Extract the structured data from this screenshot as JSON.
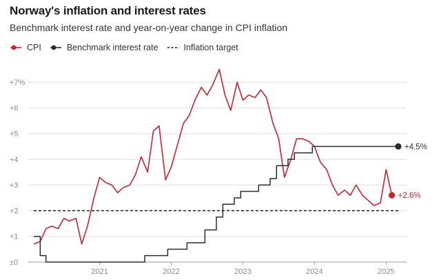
{
  "chart_data": {
    "type": "line",
    "title": "Norway's inflation and interest rates",
    "subtitle": "Benchmark interest rate and year-on-year change in CPI inflation",
    "legend_position": "top-left",
    "grid": true,
    "xlim": [
      2020.08,
      2025.17
    ],
    "ylim": [
      0,
      7.5
    ],
    "x_ticks": [
      {
        "value": 2021,
        "label": "2021"
      },
      {
        "value": 2022,
        "label": "2022"
      },
      {
        "value": 2023,
        "label": "2023"
      },
      {
        "value": 2024,
        "label": "2024"
      },
      {
        "value": 2025,
        "label": "2025"
      }
    ],
    "y_ticks": [
      {
        "value": 0,
        "label": "±0"
      },
      {
        "value": 1,
        "label": "+1"
      },
      {
        "value": 2,
        "label": "+2"
      },
      {
        "value": 3,
        "label": "+3"
      },
      {
        "value": 4,
        "label": "+4"
      },
      {
        "value": 5,
        "label": "+5"
      },
      {
        "value": 6,
        "label": "+6"
      },
      {
        "value": 7,
        "label": "+7%"
      }
    ],
    "series": [
      {
        "name": "CPI",
        "color": "#d0202e",
        "style": "line",
        "end_label": "+2.6%",
        "points": [
          [
            2020.08,
            0.7
          ],
          [
            2020.17,
            0.8
          ],
          [
            2020.25,
            1.3
          ],
          [
            2020.33,
            1.4
          ],
          [
            2020.42,
            1.3
          ],
          [
            2020.5,
            1.7
          ],
          [
            2020.58,
            1.6
          ],
          [
            2020.67,
            1.7
          ],
          [
            2020.75,
            0.7
          ],
          [
            2020.83,
            1.4
          ],
          [
            2020.92,
            2.5
          ],
          [
            2021.0,
            3.3
          ],
          [
            2021.08,
            3.1
          ],
          [
            2021.17,
            3.0
          ],
          [
            2021.25,
            2.7
          ],
          [
            2021.33,
            2.9
          ],
          [
            2021.42,
            3.0
          ],
          [
            2021.5,
            3.4
          ],
          [
            2021.58,
            4.1
          ],
          [
            2021.67,
            3.5
          ],
          [
            2021.75,
            5.1
          ],
          [
            2021.83,
            5.3
          ],
          [
            2021.92,
            3.2
          ],
          [
            2022.0,
            3.7
          ],
          [
            2022.08,
            4.5
          ],
          [
            2022.17,
            5.4
          ],
          [
            2022.25,
            5.7
          ],
          [
            2022.33,
            6.3
          ],
          [
            2022.42,
            6.8
          ],
          [
            2022.5,
            6.5
          ],
          [
            2022.58,
            6.9
          ],
          [
            2022.67,
            7.5
          ],
          [
            2022.75,
            6.5
          ],
          [
            2022.83,
            5.9
          ],
          [
            2022.92,
            7.0
          ],
          [
            2023.0,
            6.3
          ],
          [
            2023.08,
            6.5
          ],
          [
            2023.17,
            6.4
          ],
          [
            2023.25,
            6.7
          ],
          [
            2023.33,
            6.4
          ],
          [
            2023.42,
            5.4
          ],
          [
            2023.5,
            4.8
          ],
          [
            2023.58,
            3.3
          ],
          [
            2023.67,
            4.0
          ],
          [
            2023.75,
            4.8
          ],
          [
            2023.83,
            4.8
          ],
          [
            2023.92,
            4.7
          ],
          [
            2024.0,
            4.5
          ],
          [
            2024.08,
            3.9
          ],
          [
            2024.17,
            3.6
          ],
          [
            2024.25,
            3.0
          ],
          [
            2024.33,
            2.6
          ],
          [
            2024.42,
            2.8
          ],
          [
            2024.5,
            2.6
          ],
          [
            2024.58,
            3.0
          ],
          [
            2024.67,
            2.6
          ],
          [
            2024.75,
            2.4
          ],
          [
            2024.83,
            2.2
          ],
          [
            2024.92,
            2.3
          ],
          [
            2025.0,
            3.6
          ],
          [
            2025.08,
            2.6
          ]
        ]
      },
      {
        "name": "Benchmark interest rate",
        "color": "#2b2b2b",
        "style": "step",
        "end_label": "+4.5%",
        "points": [
          [
            2020.08,
            1.0
          ],
          [
            2020.17,
            0.25
          ],
          [
            2020.25,
            0.0
          ],
          [
            2021.63,
            0.25
          ],
          [
            2021.95,
            0.5
          ],
          [
            2022.22,
            0.75
          ],
          [
            2022.47,
            1.25
          ],
          [
            2022.63,
            1.75
          ],
          [
            2022.72,
            2.25
          ],
          [
            2022.88,
            2.5
          ],
          [
            2022.97,
            2.75
          ],
          [
            2023.22,
            3.0
          ],
          [
            2023.38,
            3.25
          ],
          [
            2023.47,
            3.75
          ],
          [
            2023.63,
            4.0
          ],
          [
            2023.72,
            4.25
          ],
          [
            2023.97,
            4.5
          ],
          [
            2025.17,
            4.5
          ]
        ]
      },
      {
        "name": "Inflation target",
        "color": "#1a1a1a",
        "style": "dashed",
        "points": [
          [
            2020.08,
            2.0
          ],
          [
            2025.17,
            2.0
          ]
        ]
      }
    ]
  }
}
